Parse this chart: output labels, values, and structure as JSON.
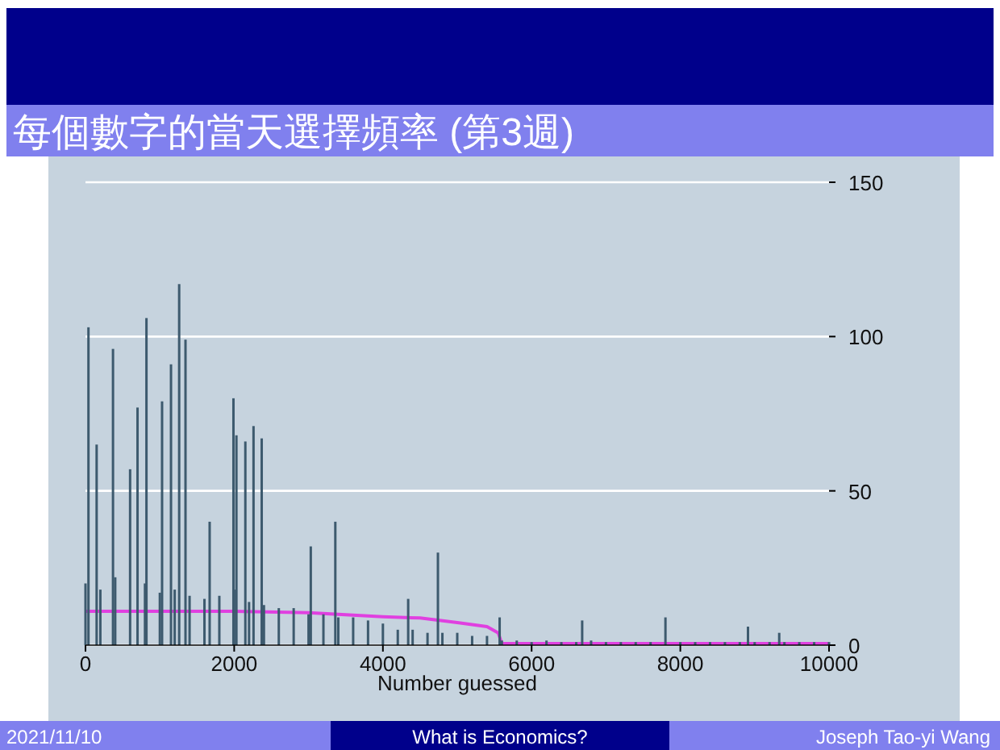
{
  "chart_data": {
    "type": "bar",
    "title": "每個數字的當天選擇頻率 (第3週)",
    "xlabel": "Number guessed",
    "xlim": [
      0,
      10000
    ],
    "xticks": [
      0,
      2000,
      4000,
      6000,
      8000,
      10000
    ],
    "ylim": [
      0,
      150
    ],
    "yticks": [
      0,
      50,
      100,
      150
    ],
    "grid": "y",
    "annotations": [
      "2021/11/10",
      "What is Economics?",
      "Joseph Tao-yi Wang"
    ],
    "series": [
      {
        "color": "#3d5a6e",
        "x": [
          0,
          40,
          150,
          200,
          370,
          400,
          600,
          700,
          800,
          820,
          1000,
          1030,
          1150,
          1200,
          1260,
          1345,
          1400,
          1600,
          1670,
          1800,
          1990,
          2000,
          2030,
          2150,
          2200,
          2260,
          2370,
          2400,
          2600,
          2800,
          3000,
          3030,
          3200,
          3360,
          3400,
          3600,
          3800,
          4000,
          4200,
          4340,
          4400,
          4600,
          4740,
          4800,
          5000,
          5200,
          5400,
          5570,
          5600,
          5800,
          6000,
          6200,
          6400,
          6600,
          6680,
          6800,
          7000,
          7200,
          7400,
          7600,
          7800,
          8000,
          8200,
          8400,
          8600,
          8800,
          8910,
          9000,
          9200,
          9330,
          9400,
          9600,
          9800,
          10000
        ],
        "values": [
          20,
          103,
          65,
          18,
          96,
          22,
          57,
          77,
          20,
          106,
          17,
          79,
          91,
          18,
          117,
          99,
          16,
          15,
          40,
          16,
          80,
          18,
          68,
          66,
          14,
          71,
          67,
          13,
          12,
          12,
          10,
          32,
          10,
          40,
          9,
          9,
          8,
          7,
          5,
          15,
          5,
          4,
          30,
          4,
          4,
          3,
          3,
          9,
          1.5,
          1.5,
          1,
          1.5,
          1,
          1,
          8,
          1.5,
          1,
          1,
          1,
          1,
          9,
          1,
          1,
          1,
          1,
          1,
          6,
          1,
          1,
          4,
          1,
          1,
          1,
          1
        ]
      },
      {
        "type": "line",
        "color": "#e040e0",
        "x": [
          0,
          2000,
          3000,
          4000,
          4500,
          5000,
          5400,
          5550,
          5600,
          10000
        ],
        "values": [
          11,
          11,
          10.5,
          9.2,
          8.8,
          7.3,
          6,
          4,
          0.5,
          0.5
        ]
      }
    ]
  }
}
